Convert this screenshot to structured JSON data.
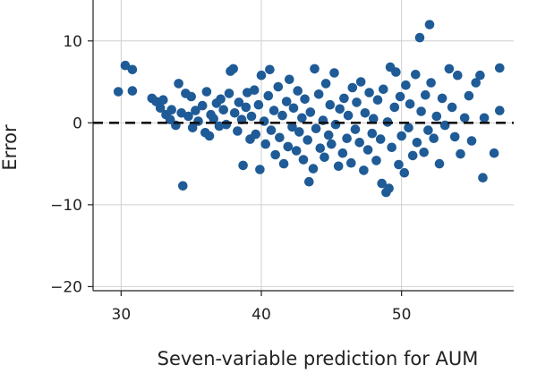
{
  "chart_data": {
    "type": "scatter",
    "title": "",
    "xlabel": "Seven-variable prediction for AUM",
    "ylabel": "Error",
    "xlim": [
      28,
      58
    ],
    "ylim": [
      -20.5,
      15
    ],
    "x_ticks": [
      30,
      40,
      50
    ],
    "x_tick_labels": [
      "30",
      "40",
      "50"
    ],
    "y_ticks": [
      10,
      0,
      -10,
      -20
    ],
    "y_tick_labels": [
      "10",
      "0",
      "−10",
      "−20"
    ],
    "grid": true,
    "reference_line": {
      "y": 0,
      "style": "dashed"
    },
    "point_color": "#1f5b96",
    "series": [
      {
        "points": [
          [
            29.8,
            3.8
          ],
          [
            30.3,
            7.0
          ],
          [
            30.8,
            6.5
          ],
          [
            30.8,
            3.9
          ],
          [
            32.2,
            3.0
          ],
          [
            32.5,
            2.6
          ],
          [
            32.8,
            1.8
          ],
          [
            33.0,
            2.8
          ],
          [
            33.2,
            1.0
          ],
          [
            33.5,
            0.4
          ],
          [
            33.6,
            1.6
          ],
          [
            33.9,
            -0.3
          ],
          [
            34.1,
            4.8
          ],
          [
            34.3,
            1.2
          ],
          [
            34.4,
            -7.7
          ],
          [
            34.6,
            3.6
          ],
          [
            34.8,
            0.8
          ],
          [
            35.0,
            3.2
          ],
          [
            35.1,
            -0.6
          ],
          [
            35.3,
            1.5
          ],
          [
            35.5,
            0.2
          ],
          [
            35.8,
            2.1
          ],
          [
            36.0,
            -1.2
          ],
          [
            36.1,
            3.8
          ],
          [
            36.3,
            -1.6
          ],
          [
            36.4,
            1.0
          ],
          [
            36.6,
            0.5
          ],
          [
            36.8,
            2.4
          ],
          [
            37.0,
            -0.4
          ],
          [
            37.1,
            2.9
          ],
          [
            37.3,
            1.6
          ],
          [
            37.5,
            -0.2
          ],
          [
            37.7,
            3.6
          ],
          [
            37.8,
            6.3
          ],
          [
            38.0,
            6.6
          ],
          [
            38.1,
            1.2
          ],
          [
            38.3,
            -1.0
          ],
          [
            38.4,
            2.5
          ],
          [
            38.6,
            0.4
          ],
          [
            38.7,
            -5.2
          ],
          [
            38.9,
            1.9
          ],
          [
            39.0,
            3.7
          ],
          [
            39.2,
            -2.0
          ],
          [
            39.3,
            0.8
          ],
          [
            39.5,
            4.0
          ],
          [
            39.6,
            -1.4
          ],
          [
            39.8,
            2.2
          ],
          [
            39.9,
            -5.7
          ],
          [
            40.0,
            5.8
          ],
          [
            40.2,
            0.2
          ],
          [
            40.3,
            -2.6
          ],
          [
            40.5,
            3.3
          ],
          [
            40.6,
            6.5
          ],
          [
            40.7,
            -0.9
          ],
          [
            40.9,
            1.5
          ],
          [
            41.0,
            -3.9
          ],
          [
            41.2,
            4.4
          ],
          [
            41.3,
            -1.8
          ],
          [
            41.5,
            0.9
          ],
          [
            41.6,
            -5.0
          ],
          [
            41.8,
            2.6
          ],
          [
            41.9,
            -2.9
          ],
          [
            42.0,
            5.3
          ],
          [
            42.2,
            -0.5
          ],
          [
            42.3,
            1.8
          ],
          [
            42.5,
            -3.4
          ],
          [
            42.6,
            3.9
          ],
          [
            42.7,
            -1.1
          ],
          [
            42.9,
            0.6
          ],
          [
            43.0,
            -4.5
          ],
          [
            43.1,
            2.9
          ],
          [
            43.3,
            -2.1
          ],
          [
            43.4,
            -7.2
          ],
          [
            43.5,
            1.3
          ],
          [
            43.7,
            -5.6
          ],
          [
            43.8,
            6.6
          ],
          [
            43.9,
            -0.7
          ],
          [
            44.1,
            3.5
          ],
          [
            44.2,
            -3.1
          ],
          [
            44.4,
            0.3
          ],
          [
            44.5,
            -4.2
          ],
          [
            44.6,
            4.8
          ],
          [
            44.8,
            -1.5
          ],
          [
            44.9,
            2.2
          ],
          [
            45.0,
            -2.6
          ],
          [
            45.2,
            6.1
          ],
          [
            45.3,
            -0.2
          ],
          [
            45.5,
            -5.3
          ],
          [
            45.6,
            1.7
          ],
          [
            45.8,
            -3.7
          ],
          [
            45.9,
            3.0
          ],
          [
            46.1,
            -1.9
          ],
          [
            46.2,
            0.9
          ],
          [
            46.4,
            -4.9
          ],
          [
            46.5,
            4.3
          ],
          [
            46.7,
            -0.8
          ],
          [
            46.8,
            2.5
          ],
          [
            47.0,
            -2.4
          ],
          [
            47.1,
            5.0
          ],
          [
            47.3,
            -5.8
          ],
          [
            47.4,
            1.2
          ],
          [
            47.6,
            -3.3
          ],
          [
            47.7,
            3.7
          ],
          [
            47.9,
            -1.3
          ],
          [
            48.0,
            0.5
          ],
          [
            48.2,
            -4.6
          ],
          [
            48.3,
            2.8
          ],
          [
            48.5,
            -2.0
          ],
          [
            48.6,
            -7.4
          ],
          [
            48.7,
            4.1
          ],
          [
            48.9,
            -8.5
          ],
          [
            49.0,
            0.1
          ],
          [
            49.1,
            -8.0
          ],
          [
            49.2,
            6.8
          ],
          [
            49.3,
            -3.0
          ],
          [
            49.5,
            1.9
          ],
          [
            49.6,
            6.2
          ],
          [
            49.8,
            -5.1
          ],
          [
            49.9,
            3.2
          ],
          [
            50.0,
            -1.6
          ],
          [
            50.2,
            -6.1
          ],
          [
            50.3,
            4.6
          ],
          [
            50.5,
            -0.6
          ],
          [
            50.6,
            2.3
          ],
          [
            50.8,
            -4.0
          ],
          [
            51.0,
            5.9
          ],
          [
            51.1,
            -2.4
          ],
          [
            51.3,
            10.4
          ],
          [
            51.4,
            1.4
          ],
          [
            51.6,
            -3.6
          ],
          [
            51.7,
            3.4
          ],
          [
            51.9,
            -0.9
          ],
          [
            52.0,
            12.0
          ],
          [
            52.1,
            4.9
          ],
          [
            52.3,
            -1.9
          ],
          [
            52.5,
            0.8
          ],
          [
            52.7,
            -5.0
          ],
          [
            52.9,
            3.0
          ],
          [
            53.1,
            -0.3
          ],
          [
            53.4,
            6.6
          ],
          [
            53.6,
            1.9
          ],
          [
            53.8,
            -1.7
          ],
          [
            54.0,
            5.8
          ],
          [
            54.2,
            -3.8
          ],
          [
            54.5,
            0.6
          ],
          [
            54.8,
            3.3
          ],
          [
            55.0,
            -2.2
          ],
          [
            55.3,
            4.9
          ],
          [
            55.6,
            5.8
          ],
          [
            55.8,
            -6.7
          ],
          [
            55.9,
            0.6
          ],
          [
            56.6,
            -3.7
          ],
          [
            57.0,
            1.5
          ],
          [
            57.0,
            6.7
          ]
        ]
      }
    ]
  }
}
